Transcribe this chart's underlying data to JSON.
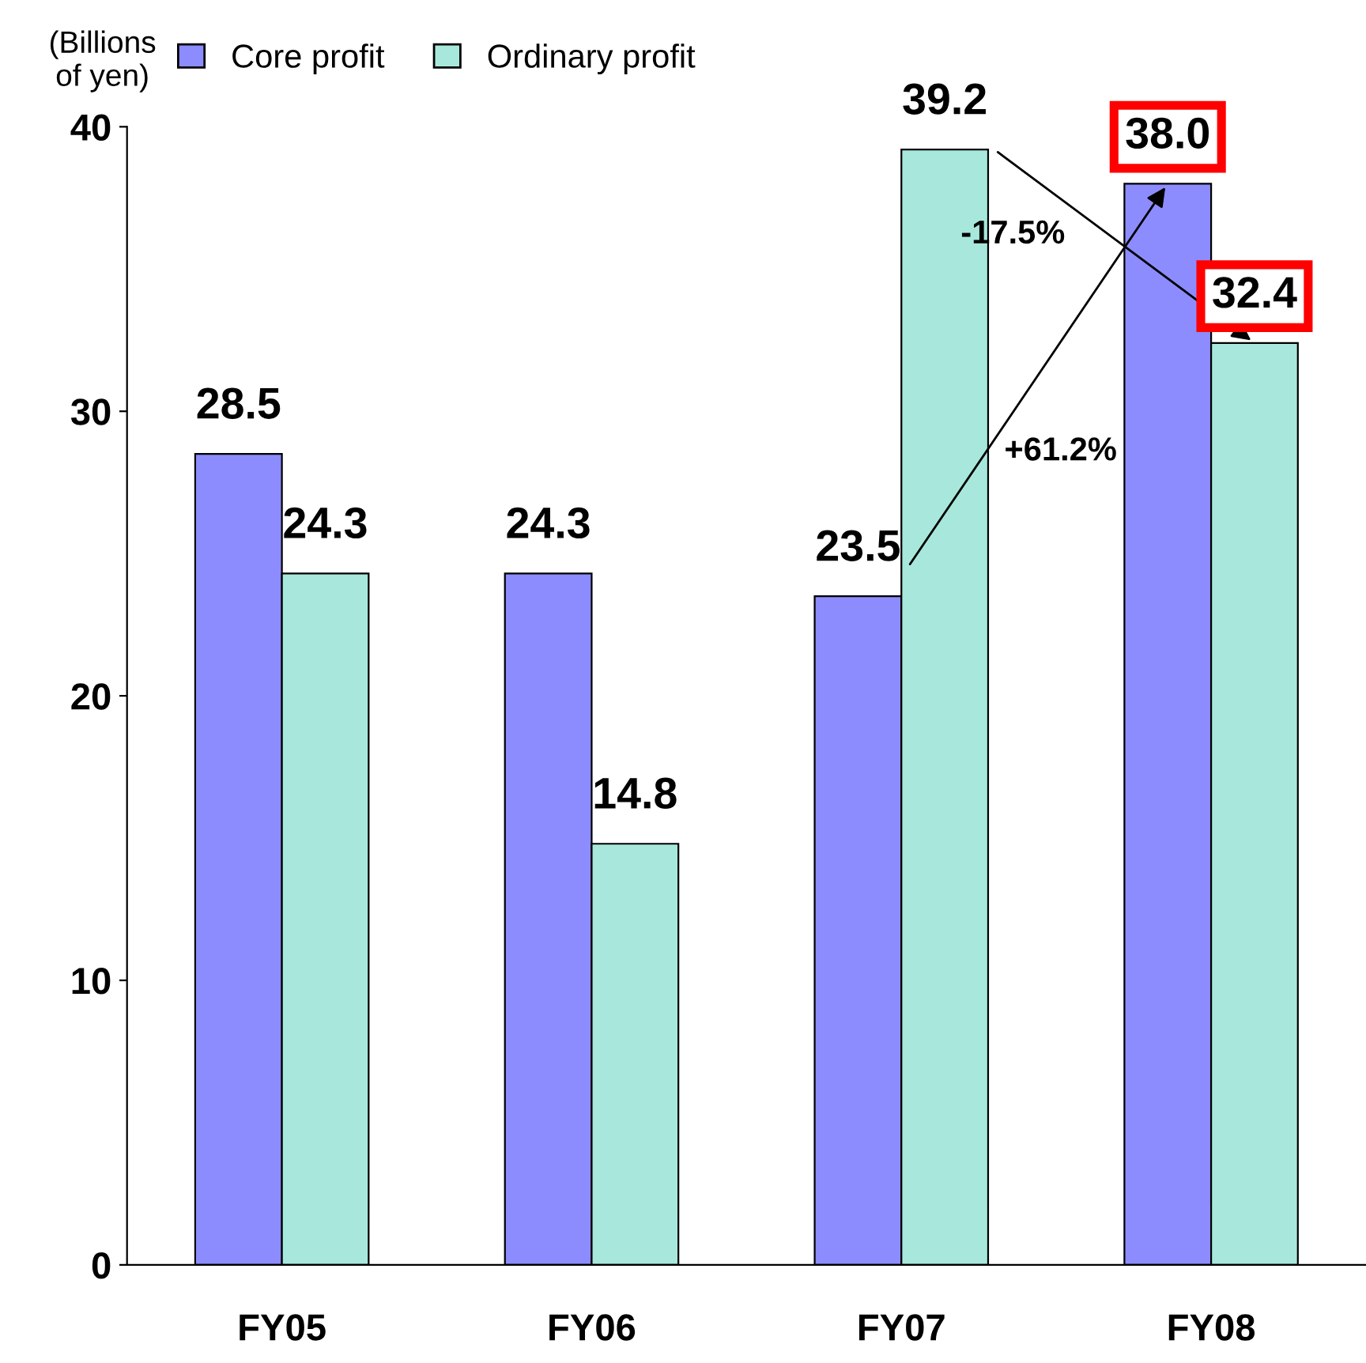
{
  "chart_data": {
    "type": "bar",
    "ylabel": "(Billions\nof yen)",
    "categories": [
      "FY05",
      "FY06",
      "FY07",
      "FY08"
    ],
    "series": [
      {
        "name": "Core profit",
        "color": "#8c8cff",
        "values": [
          28.5,
          24.3,
          23.5,
          38.0
        ],
        "value_labels": [
          "28.5",
          "24.3",
          "23.5",
          "38.0"
        ]
      },
      {
        "name": "Ordinary profit",
        "color": "#a8e8dc",
        "values": [
          24.3,
          14.8,
          39.2,
          32.4
        ],
        "value_labels": [
          "24.3",
          "14.8",
          "39.2",
          "32.4"
        ]
      }
    ],
    "ylim": [
      0,
      40
    ],
    "yticks": [
      0,
      10,
      20,
      30,
      40
    ],
    "grid": false,
    "legend": "top",
    "annotations": [
      "+61.2%",
      "-17.5%"
    ]
  }
}
